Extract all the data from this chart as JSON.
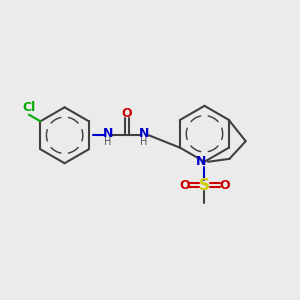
{
  "bg_color": "#ebebeb",
  "bond_color": "#404040",
  "bond_width": 1.5,
  "colors": {
    "C": "#404040",
    "N": "#0000cc",
    "O": "#cc0000",
    "Cl": "#00aa00",
    "S": "#cccc00"
  },
  "font_size": 9,
  "small_font": 7,
  "figsize": [
    3.0,
    3.0
  ],
  "dpi": 100
}
